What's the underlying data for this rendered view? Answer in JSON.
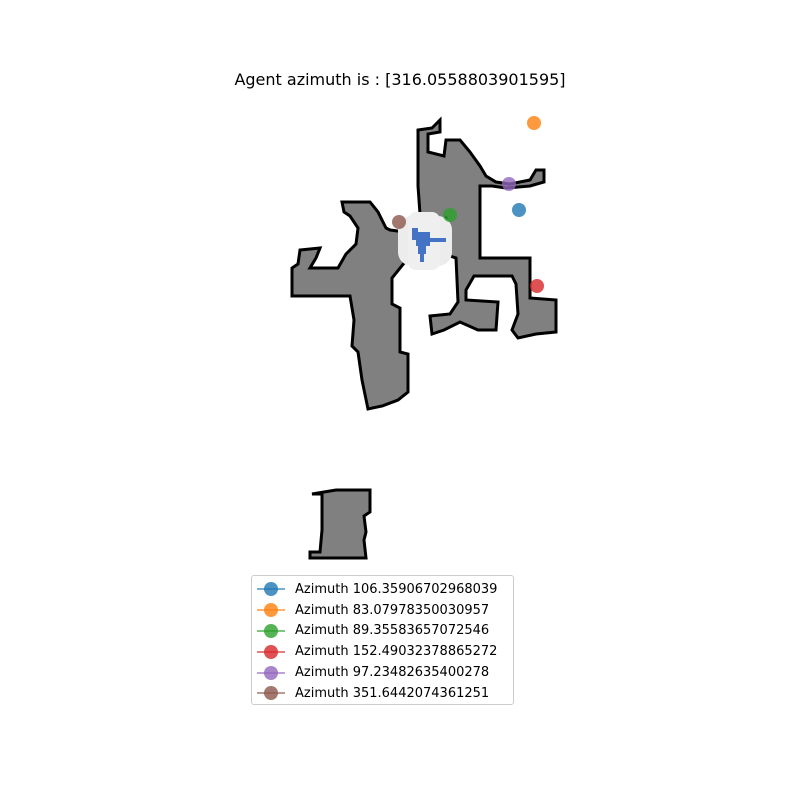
{
  "title": "Agent azimuth is : [316.0558803901595]",
  "map": {
    "free_fill": "#808080",
    "wall_color": "#000000",
    "agent_color": "#4472c4",
    "explored_halo": "#ececec"
  },
  "markers": [
    {
      "label": "Azimuth 106.35906702968039",
      "color": "#1f77b4"
    },
    {
      "label": "Azimuth 83.07978350030957",
      "color": "#ff7f0e"
    },
    {
      "label": "Azimuth 89.35583657072546",
      "color": "#2ca02c"
    },
    {
      "label": "Azimuth 152.49032378865272",
      "color": "#d62728"
    },
    {
      "label": "Azimuth 97.23482635400278",
      "color": "#9467bd"
    },
    {
      "label": "Azimuth 351.6442074361251",
      "color": "#8c564b"
    }
  ]
}
